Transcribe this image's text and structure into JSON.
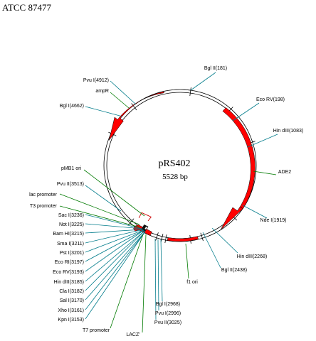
{
  "title": "ATCC 87477",
  "plasmid": {
    "name": "pRS402",
    "size": "5528 bp"
  },
  "colors": {
    "feature": "#ff0000",
    "site_line": "#007b8a",
    "feature_line": "#007a00",
    "backbone": "#000000"
  },
  "sites": [
    {
      "label": "Bgl II(181)"
    },
    {
      "label": "Eco RV(198)"
    },
    {
      "label": "Hin dIII(1083)"
    },
    {
      "label": "Nde I(1919)"
    },
    {
      "label": "Hin dIII(2268)"
    },
    {
      "label": "Bgl II(2438)"
    },
    {
      "label": "Bgl I(2968)"
    },
    {
      "label": "Pvu I(2996)"
    },
    {
      "label": "Pvu II(3025)"
    },
    {
      "label": "Kpn I(3153)"
    },
    {
      "label": "Xho I(3161)"
    },
    {
      "label": "Sal I(3170)"
    },
    {
      "label": "Cla I(3182)"
    },
    {
      "label": "Hin dIII(3185)"
    },
    {
      "label": "Eco RV(3193)"
    },
    {
      "label": "Eco RI(3197)"
    },
    {
      "label": "Pst I(3201)"
    },
    {
      "label": "Sma I(3211)"
    },
    {
      "label": "Bam HI(3215)"
    },
    {
      "label": "Not I(3225)"
    },
    {
      "label": "Sac I(3236)"
    },
    {
      "label": "Pvu II(3513)"
    },
    {
      "label": "Bgl I(4662)"
    },
    {
      "label": "Pvu I(4912)"
    }
  ],
  "features": [
    {
      "label": "ADE2"
    },
    {
      "label": "f1 ori"
    },
    {
      "label": "LACZ'"
    },
    {
      "label": "T7 promoter"
    },
    {
      "label": "T3 promoter"
    },
    {
      "label": "lac promoter"
    },
    {
      "label": "pMB1 ori"
    },
    {
      "label": "ampR"
    }
  ]
}
